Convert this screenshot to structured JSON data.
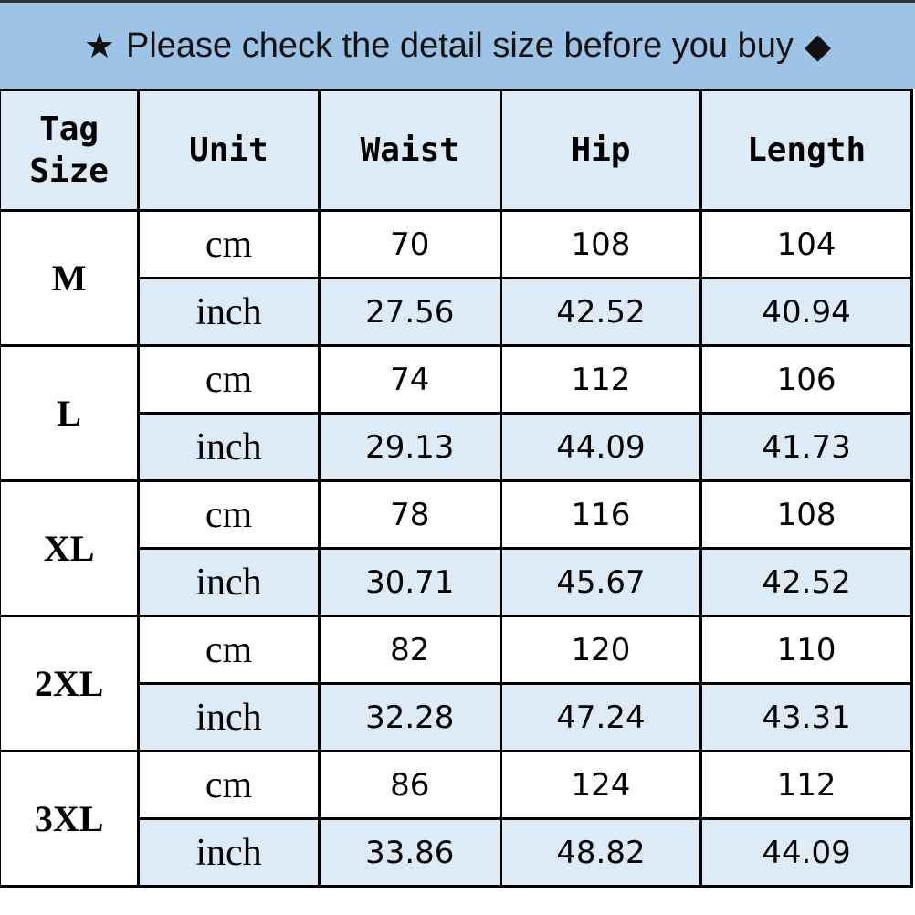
{
  "banner": {
    "star_icon": "★",
    "text": "Please check the detail size before you buy",
    "diamond_icon": "◆"
  },
  "colors": {
    "banner": "#9dc3e6",
    "header": "#ddebf7",
    "inch_row": "#ddebf7"
  },
  "headers": {
    "tag": "Tag",
    "size": "Size",
    "unit": "Unit",
    "waist": "Waist",
    "hip": "Hip",
    "length": "Length"
  },
  "rows": [
    {
      "size": "M",
      "cm": {
        "unit": "cm",
        "waist": "70",
        "hip": "108",
        "length": "104"
      },
      "inch": {
        "unit": "inch",
        "waist": "27.56",
        "hip": "42.52",
        "length": "40.94"
      }
    },
    {
      "size": "L",
      "cm": {
        "unit": "cm",
        "waist": "74",
        "hip": "112",
        "length": "106"
      },
      "inch": {
        "unit": "inch",
        "waist": "29.13",
        "hip": "44.09",
        "length": "41.73"
      }
    },
    {
      "size": "XL",
      "cm": {
        "unit": "cm",
        "waist": "78",
        "hip": "116",
        "length": "108"
      },
      "inch": {
        "unit": "inch",
        "waist": "30.71",
        "hip": "45.67",
        "length": "42.52"
      }
    },
    {
      "size": "2XL",
      "cm": {
        "unit": "cm",
        "waist": "82",
        "hip": "120",
        "length": "110"
      },
      "inch": {
        "unit": "inch",
        "waist": "32.28",
        "hip": "47.24",
        "length": "43.31"
      }
    },
    {
      "size": "3XL",
      "cm": {
        "unit": "cm",
        "waist": "86",
        "hip": "124",
        "length": "112"
      },
      "inch": {
        "unit": "inch",
        "waist": "33.86",
        "hip": "48.82",
        "length": "44.09"
      }
    }
  ]
}
